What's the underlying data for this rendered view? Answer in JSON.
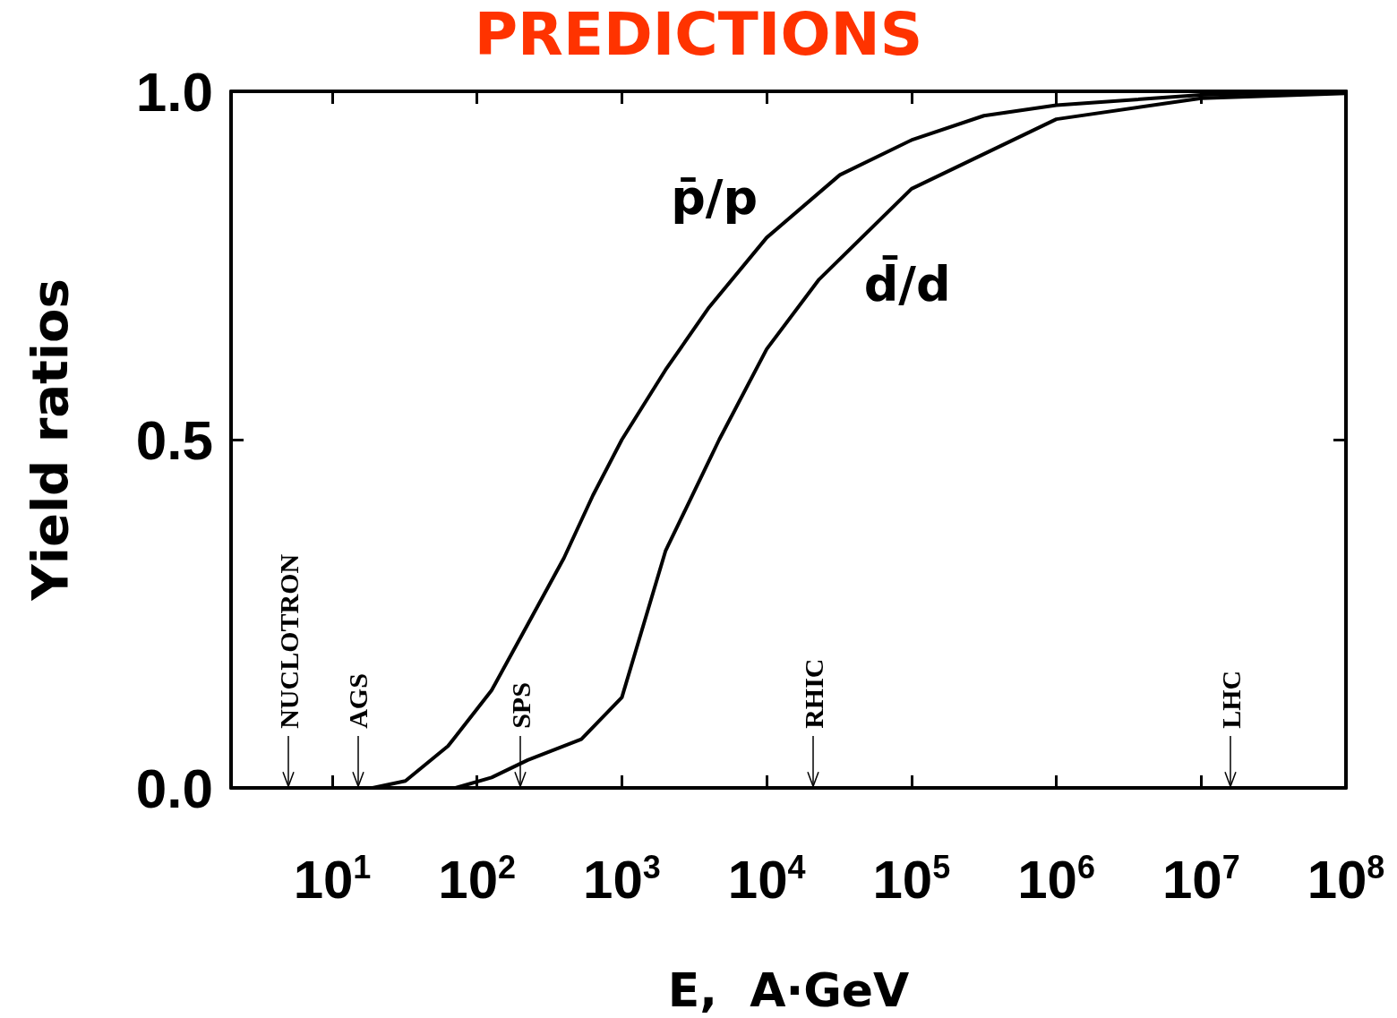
{
  "chart_data": {
    "type": "line",
    "title": "PREDICTIONS",
    "xlabel": "E,  A·GeV",
    "ylabel": "Yield ratios",
    "log": "x",
    "xlim": [
      2,
      100000000
    ],
    "xticks": [
      {
        "value": 10,
        "label": "10$^{1}$"
      },
      {
        "value": 100,
        "label": "10$^{2}$"
      },
      {
        "value": 1000,
        "label": "10$^{3}$"
      },
      {
        "value": 10000,
        "label": "10$^{4}$"
      },
      {
        "value": 100000,
        "label": "10$^{5}$"
      },
      {
        "value": 1000000,
        "label": "10$^{6}$"
      },
      {
        "value": 10000000,
        "label": "10$^{7}$"
      },
      {
        "value": 100000000,
        "label": "10$^{8}$"
      }
    ],
    "ylim": [
      0,
      1
    ],
    "yticks": [
      {
        "value": 0,
        "label": "0.0"
      },
      {
        "value": 0.5,
        "label": "0.5"
      },
      {
        "value": 1,
        "label": "1.0"
      }
    ],
    "grid": false,
    "legend": false,
    "marker": "none",
    "line_style": "solid",
    "series": [
      {
        "name": "p̄/p",
        "color": "#000000",
        "x": [
          19,
          32,
          63,
          126,
          224,
          398,
          631,
          1000,
          2000,
          4000,
          10000,
          32000,
          100000,
          316000,
          1000000,
          10000000,
          100000000
        ],
        "values": [
          0,
          0.01,
          0.06,
          0.14,
          0.235,
          0.33,
          0.42,
          0.5,
          0.6,
          0.69,
          0.79,
          0.88,
          0.93,
          0.965,
          0.98,
          0.995,
          1.0
        ]
      },
      {
        "name": "d̄/d",
        "color": "#000000",
        "x": [
          71,
          126,
          224,
          525,
          1000,
          2000,
          4700,
          10000,
          23000,
          100000,
          1000000,
          10000000,
          100000000
        ],
        "values": [
          0,
          0.015,
          0.04,
          0.07,
          0.13,
          0.34,
          0.5,
          0.63,
          0.73,
          0.86,
          0.96,
          0.99,
          0.997
        ]
      }
    ],
    "ref_lines": [
      {
        "axis": "x",
        "value": 5,
        "label": "NUCLOTRON"
      },
      {
        "axis": "x",
        "value": 15,
        "label": "AGS"
      },
      {
        "axis": "x",
        "value": 200,
        "label": "SPS"
      },
      {
        "axis": "x",
        "value": 21000,
        "label": "RHIC"
      },
      {
        "axis": "x",
        "value": 16000000,
        "label": "LHC"
      }
    ]
  }
}
